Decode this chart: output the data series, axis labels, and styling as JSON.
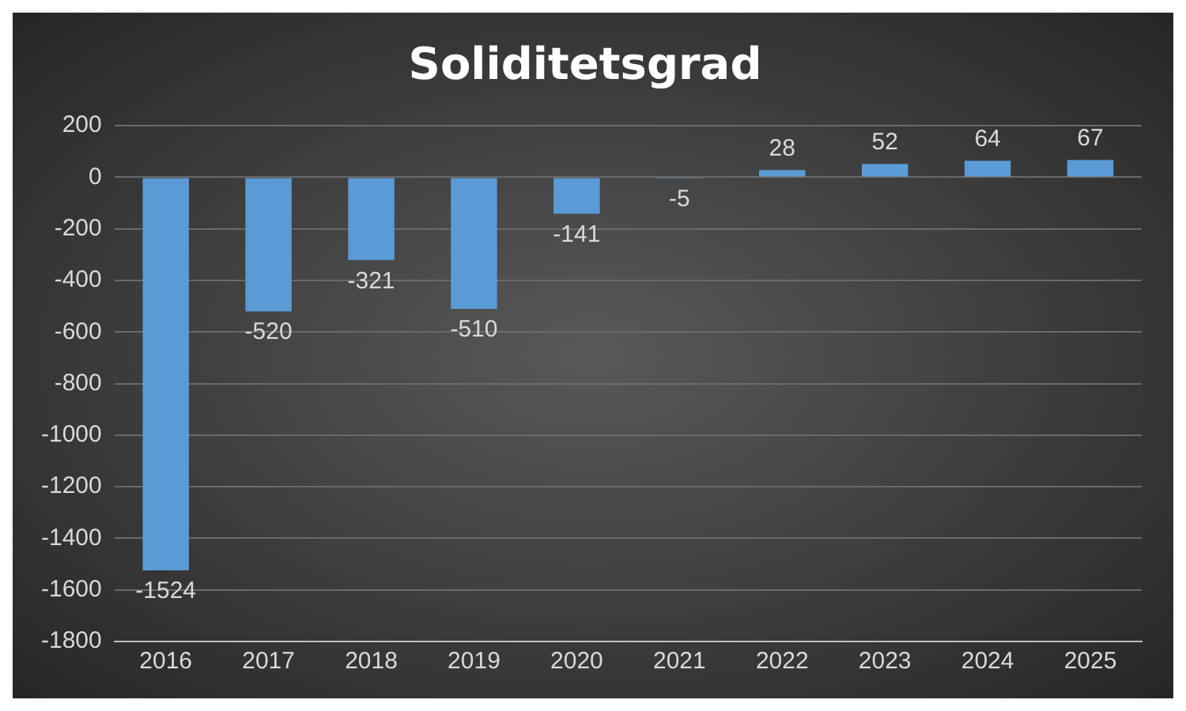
{
  "chart_data": {
    "type": "bar",
    "title": "Soliditetsgrad",
    "categories": [
      "2016",
      "2017",
      "2018",
      "2019",
      "2020",
      "2021",
      "2022",
      "2023",
      "2024",
      "2025"
    ],
    "values": [
      -1524,
      -520,
      -321,
      -510,
      -141,
      -5,
      28,
      52,
      64,
      67
    ],
    "color": "#5b9bd5",
    "ylim": [
      -1800,
      200
    ],
    "yticks": [
      -1800,
      -1600,
      -1400,
      -1200,
      -1000,
      -800,
      -600,
      -400,
      -200,
      0,
      200
    ],
    "grid": "y",
    "data_labels": true,
    "legend": false
  }
}
